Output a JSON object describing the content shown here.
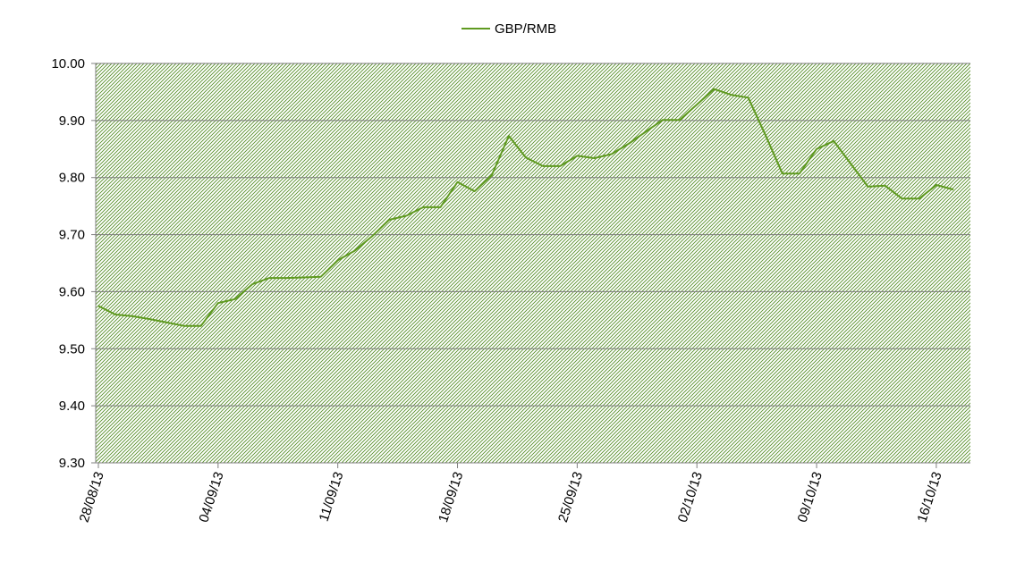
{
  "chart_data": {
    "type": "line",
    "title": "",
    "xlabel": "",
    "ylabel": "",
    "ylim": [
      9.3,
      10.0
    ],
    "y_ticks": [
      "9.30",
      "9.40",
      "9.50",
      "9.60",
      "9.70",
      "9.80",
      "9.90",
      "10.00"
    ],
    "x_ticks": [
      "28/08/13",
      "04/09/13",
      "11/09/13",
      "18/09/13",
      "25/09/13",
      "02/10/13",
      "09/10/13",
      "16/10/13"
    ],
    "x_range": [
      "2013-08-28",
      "2013-10-17"
    ],
    "grid": true,
    "legend_position": "top-center",
    "colors": {
      "series": "#5f9a20",
      "plot_hatch": "#4e8a1e",
      "grid": "#7a7a7a"
    },
    "series": [
      {
        "name": "GBP/RMB",
        "x": [
          "2013-08-28",
          "2013-08-29",
          "2013-08-30",
          "2013-09-02",
          "2013-09-03",
          "2013-09-04",
          "2013-09-05",
          "2013-09-06",
          "2013-09-09",
          "2013-09-10",
          "2013-09-11",
          "2013-09-12",
          "2013-09-13",
          "2013-09-16",
          "2013-09-17",
          "2013-09-18",
          "2013-09-19",
          "2013-09-20",
          "2013-09-23",
          "2013-09-24",
          "2013-09-25",
          "2013-09-26",
          "2013-09-27",
          "2013-09-30",
          "2013-10-01",
          "2013-10-02",
          "2013-10-03",
          "2013-10-04",
          "2013-10-07",
          "2013-10-08",
          "2013-10-09",
          "2013-10-10",
          "2013-10-11",
          "2013-10-14",
          "2013-10-15",
          "2013-10-16",
          "2013-10-17",
          "2013-08-31",
          "2013-09-01",
          "2013-09-07",
          "2013-09-08",
          "2013-09-14",
          "2013-09-15",
          "2013-09-21",
          "2013-09-22",
          "2013-09-28",
          "2013-09-29",
          "2013-10-05",
          "2013-10-06",
          "2013-10-12",
          "2013-10-13"
        ],
        "values": [
          9.575,
          9.56,
          9.557,
          9.54,
          9.54,
          9.58,
          9.587,
          9.613,
          9.625,
          9.626,
          9.655,
          9.672,
          9.697,
          9.748,
          9.748,
          9.792,
          9.776,
          9.804,
          9.82,
          9.82,
          9.838,
          9.834,
          9.841,
          9.901,
          9.901,
          9.928,
          9.955,
          9.945,
          9.807,
          9.807,
          9.85,
          9.864,
          9.824,
          9.763,
          9.763,
          9.787,
          9.779,
          9.552,
          9.546,
          9.624,
          9.624,
          9.726,
          9.733,
          9.873,
          9.835,
          9.859,
          9.88,
          9.94,
          9.875,
          9.784,
          9.786
        ]
      }
    ]
  }
}
